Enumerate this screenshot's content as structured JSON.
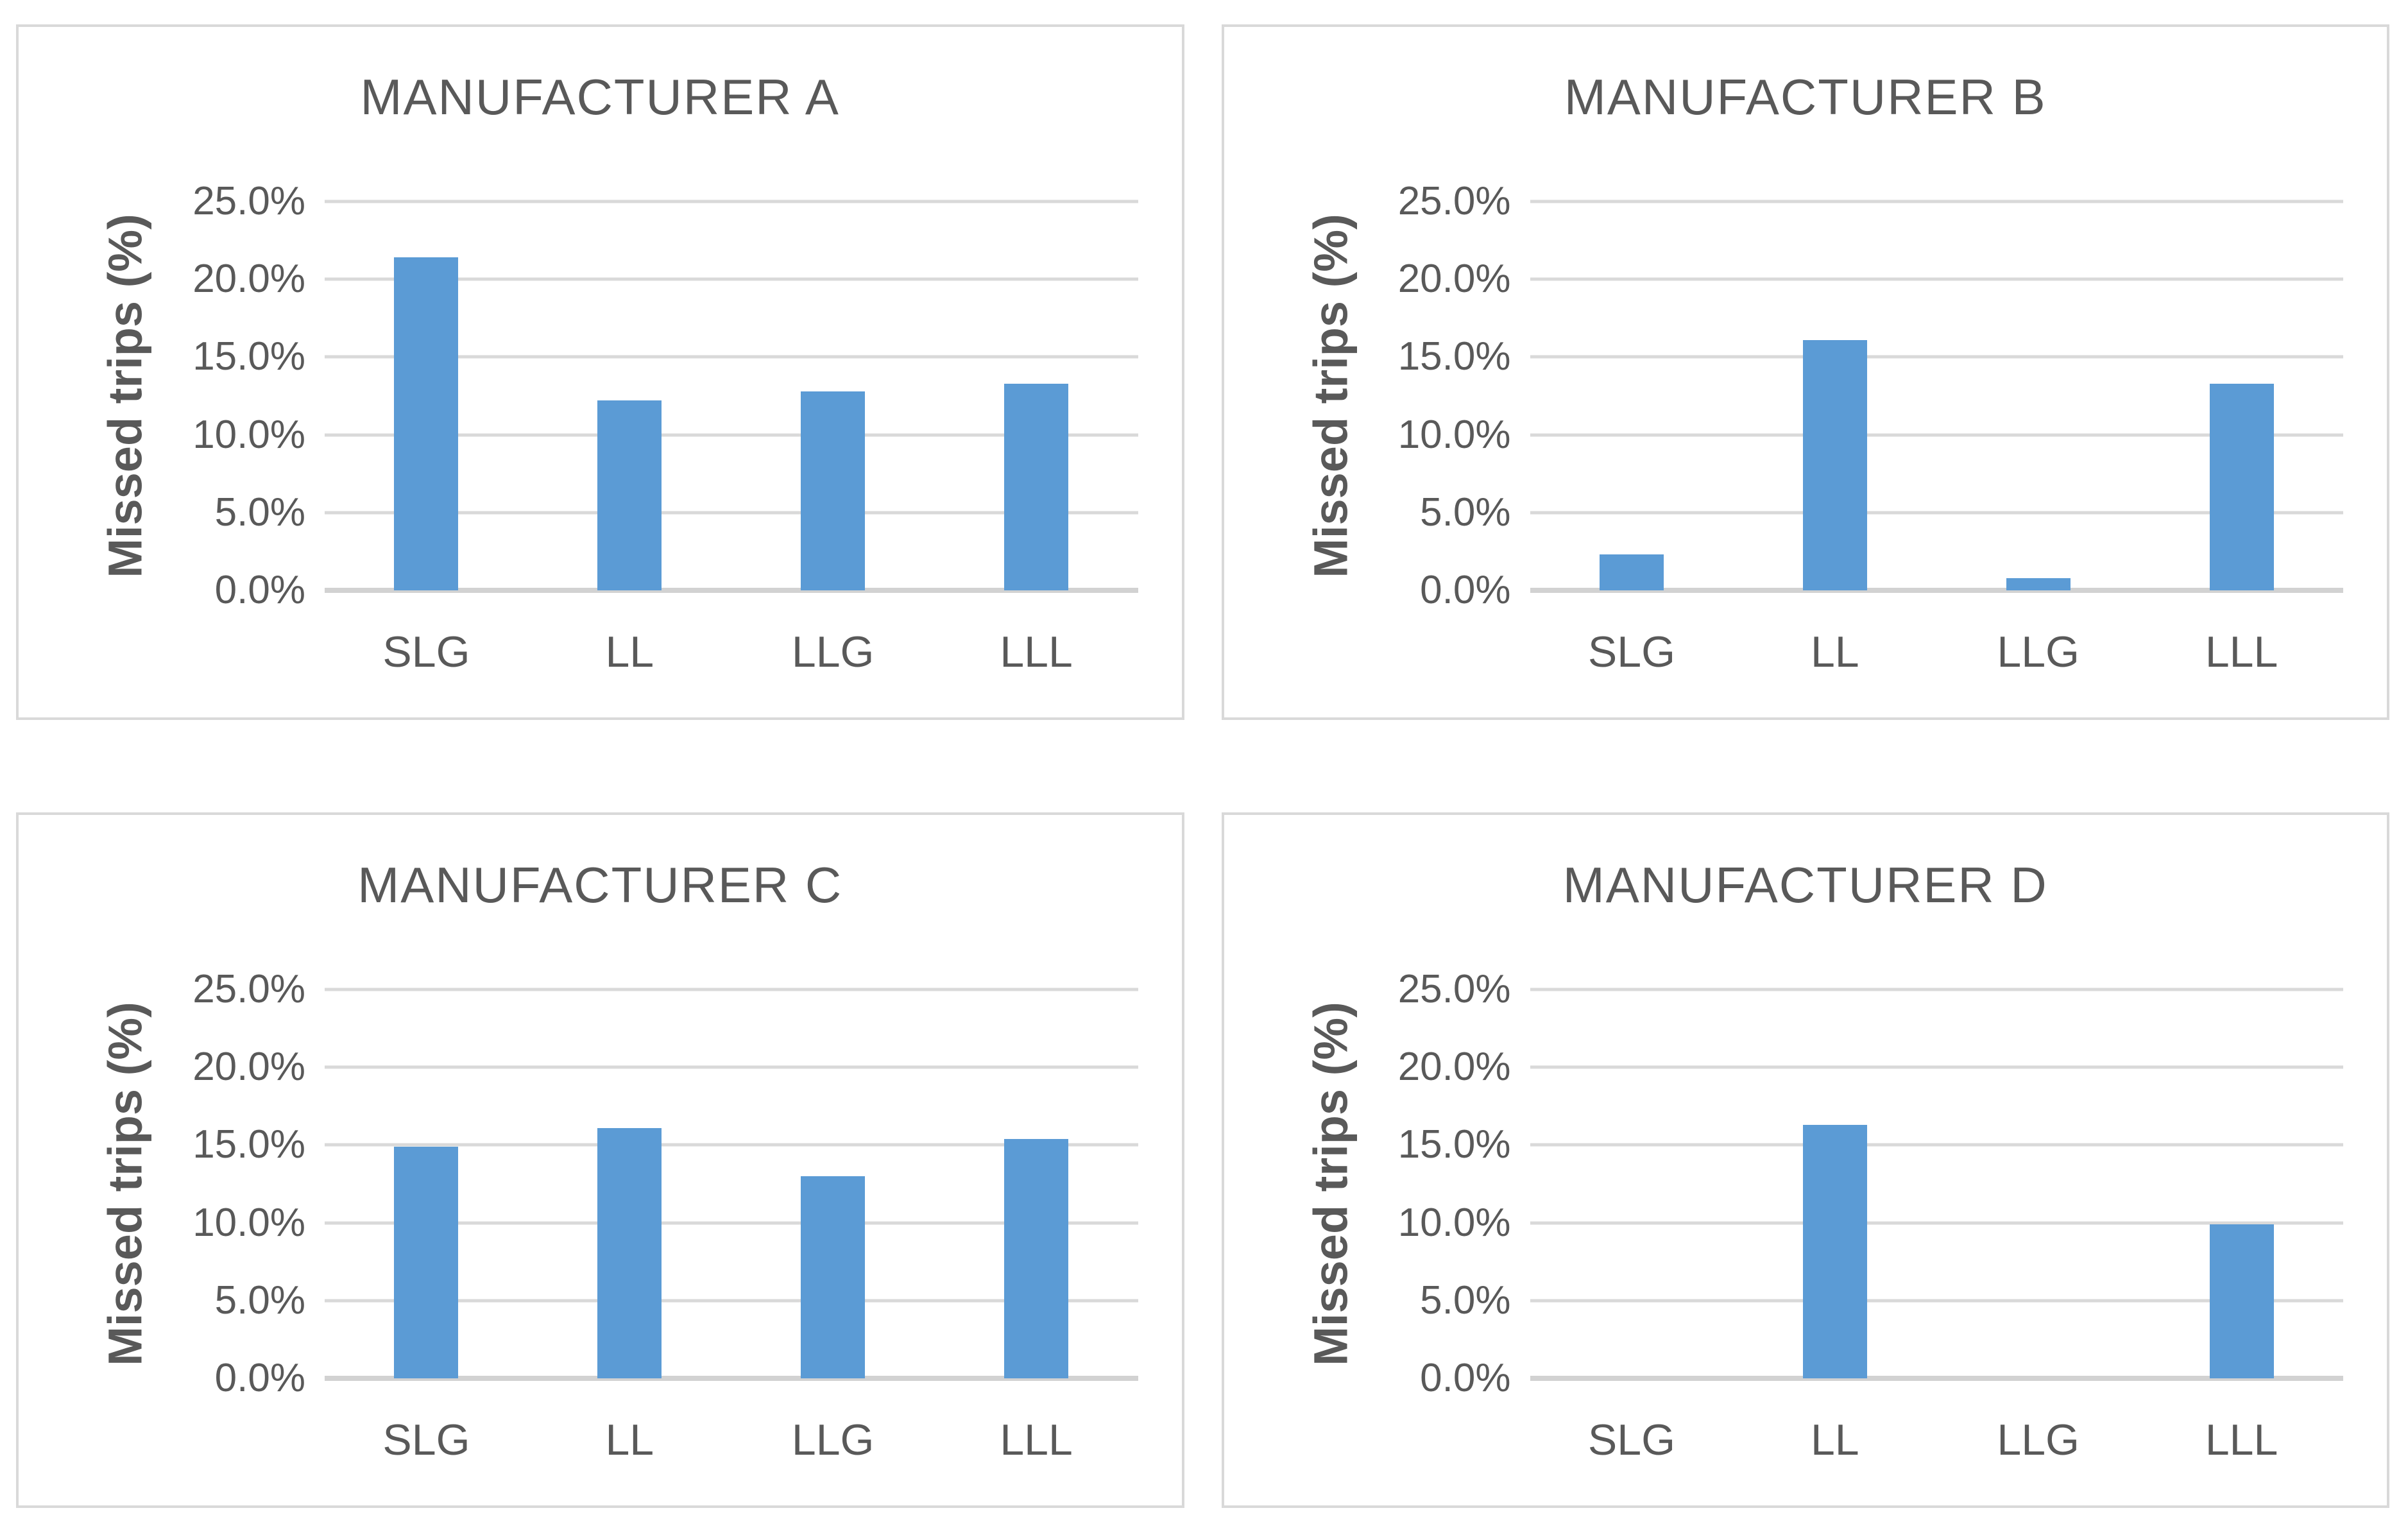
{
  "y_axis": {
    "label": "Missed trips (%)",
    "ticks": [
      "0.0%",
      "5.0%",
      "10.0%",
      "15.0%",
      "20.0%",
      "25.0%"
    ],
    "min": 0,
    "max": 25,
    "step": 5
  },
  "categories": [
    "SLG",
    "LL",
    "LLG",
    "LLL"
  ],
  "colors": {
    "bar": "#5b9bd5",
    "gridline": "#d9d9d9",
    "axis_line": "#d2d2d2",
    "text": "#595959",
    "panel_border": "#d9d9d9"
  },
  "chart_data": [
    {
      "type": "bar",
      "title": "MANUFACTURER A",
      "categories": [
        "SLG",
        "LL",
        "LLG",
        "LLL"
      ],
      "values": [
        21.4,
        12.2,
        12.8,
        13.3
      ],
      "xlabel": "",
      "ylabel": "Missed trips (%)",
      "ylim": [
        0,
        25
      ],
      "ytick_labels": [
        "0.0%",
        "5.0%",
        "10.0%",
        "15.0%",
        "20.0%",
        "25.0%"
      ],
      "grid": "horizontal",
      "legend": "none"
    },
    {
      "type": "bar",
      "title": "MANUFACTURER B",
      "categories": [
        "SLG",
        "LL",
        "LLG",
        "LLL"
      ],
      "values": [
        2.3,
        16.1,
        0.8,
        13.3
      ],
      "xlabel": "",
      "ylabel": "Missed trips (%)",
      "ylim": [
        0,
        25
      ],
      "ytick_labels": [
        "0.0%",
        "5.0%",
        "10.0%",
        "15.0%",
        "20.0%",
        "25.0%"
      ],
      "grid": "horizontal",
      "legend": "none"
    },
    {
      "type": "bar",
      "title": "MANUFACTURER C",
      "categories": [
        "SLG",
        "LL",
        "LLG",
        "LLL"
      ],
      "values": [
        14.9,
        16.1,
        13.0,
        15.4
      ],
      "xlabel": "",
      "ylabel": "Missed trips (%)",
      "ylim": [
        0,
        25
      ],
      "ytick_labels": [
        "0.0%",
        "5.0%",
        "10.0%",
        "15.0%",
        "20.0%",
        "25.0%"
      ],
      "grid": "horizontal",
      "legend": "none"
    },
    {
      "type": "bar",
      "title": "MANUFACTURER D",
      "categories": [
        "SLG",
        "LL",
        "LLG",
        "LLL"
      ],
      "values": [
        0.0,
        16.3,
        0.0,
        9.9
      ],
      "xlabel": "",
      "ylabel": "Missed trips (%)",
      "ylim": [
        0,
        25
      ],
      "ytick_labels": [
        "0.0%",
        "5.0%",
        "10.0%",
        "15.0%",
        "20.0%",
        "25.0%"
      ],
      "grid": "horizontal",
      "legend": "none"
    }
  ]
}
